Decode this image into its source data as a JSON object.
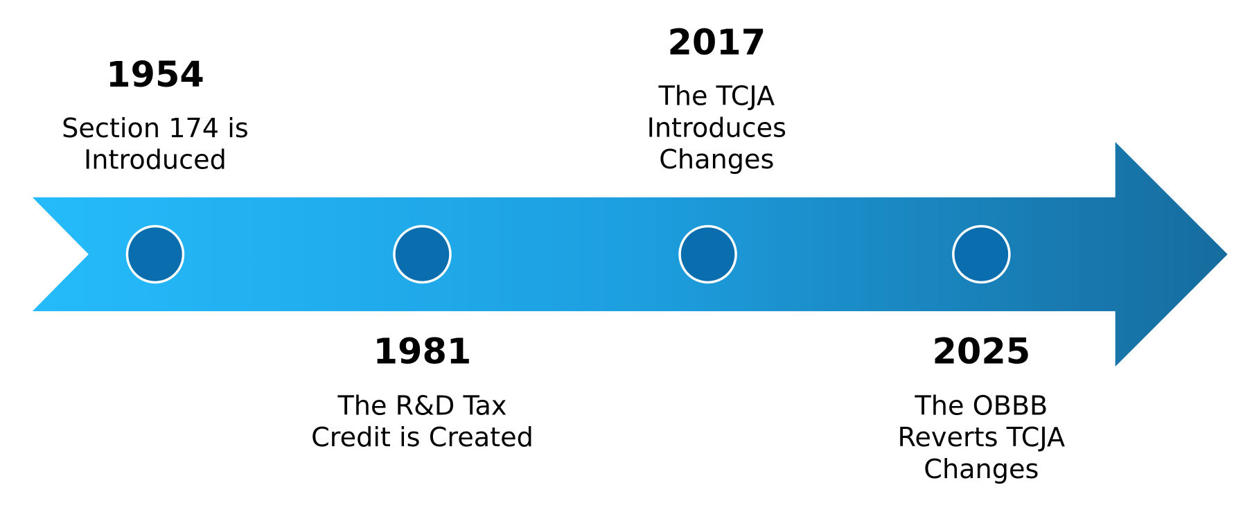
{
  "events": [
    {
      "year": "1954",
      "description": [
        "Section 174 is",
        "Introduced"
      ]
    },
    {
      "year": "1981",
      "description": [
        "The R&D Tax",
        "Credit is Created"
      ]
    },
    {
      "year": "2017",
      "description": [
        "The TCJA",
        "Introduces",
        "Changes"
      ]
    },
    {
      "year": "2025",
      "description": [
        "The OBBB",
        "Reverts TCJA",
        "Changes"
      ]
    }
  ]
}
